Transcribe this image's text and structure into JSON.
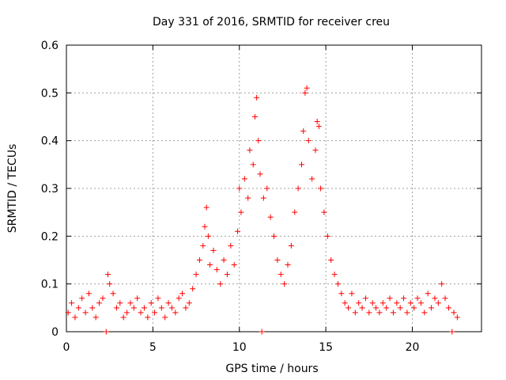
{
  "chart_data": {
    "type": "scatter",
    "title": "Day 331 of 2016, SRMTID for receiver creu",
    "xlabel": "GPS time / hours",
    "ylabel": "SRMTID / TECUs",
    "xlim": [
      0,
      24
    ],
    "ylim": [
      0,
      0.6
    ],
    "x_ticks": [
      0,
      5,
      10,
      15,
      20
    ],
    "x_tick_labels": [
      "0",
      "5",
      "10",
      "15",
      "20"
    ],
    "y_ticks": [
      0,
      0.1,
      0.2,
      0.3,
      0.4,
      0.5,
      0.6
    ],
    "y_tick_labels": [
      "0",
      "0.1",
      "0.2",
      "0.3",
      "0.4",
      "0.5",
      "0.6"
    ],
    "grid": true,
    "marker": "plus",
    "color": "#ff0000",
    "series": [
      {
        "name": "SRMTID",
        "points": [
          [
            0.1,
            0.04
          ],
          [
            0.3,
            0.06
          ],
          [
            0.5,
            0.03
          ],
          [
            0.7,
            0.05
          ],
          [
            0.9,
            0.07
          ],
          [
            1.1,
            0.04
          ],
          [
            1.3,
            0.08
          ],
          [
            1.5,
            0.05
          ],
          [
            1.7,
            0.03
          ],
          [
            1.9,
            0.06
          ],
          [
            2.1,
            0.07
          ],
          [
            2.3,
            0.0
          ],
          [
            2.4,
            0.12
          ],
          [
            2.5,
            0.1
          ],
          [
            2.7,
            0.08
          ],
          [
            2.9,
            0.05
          ],
          [
            3.1,
            0.06
          ],
          [
            3.3,
            0.03
          ],
          [
            3.5,
            0.04
          ],
          [
            3.7,
            0.06
          ],
          [
            3.9,
            0.05
          ],
          [
            4.1,
            0.07
          ],
          [
            4.3,
            0.04
          ],
          [
            4.5,
            0.05
          ],
          [
            4.7,
            0.03
          ],
          [
            4.9,
            0.06
          ],
          [
            5.1,
            0.04
          ],
          [
            5.3,
            0.07
          ],
          [
            5.5,
            0.05
          ],
          [
            5.7,
            0.03
          ],
          [
            5.9,
            0.06
          ],
          [
            6.1,
            0.05
          ],
          [
            6.3,
            0.04
          ],
          [
            6.5,
            0.07
          ],
          [
            6.7,
            0.08
          ],
          [
            6.9,
            0.05
          ],
          [
            7.1,
            0.06
          ],
          [
            7.3,
            0.09
          ],
          [
            7.5,
            0.12
          ],
          [
            7.7,
            0.15
          ],
          [
            7.9,
            0.18
          ],
          [
            8.0,
            0.22
          ],
          [
            8.1,
            0.26
          ],
          [
            8.2,
            0.2
          ],
          [
            8.3,
            0.14
          ],
          [
            8.5,
            0.17
          ],
          [
            8.7,
            0.13
          ],
          [
            8.9,
            0.1
          ],
          [
            9.1,
            0.15
          ],
          [
            9.3,
            0.12
          ],
          [
            9.5,
            0.18
          ],
          [
            9.7,
            0.14
          ],
          [
            9.9,
            0.21
          ],
          [
            10.0,
            0.3
          ],
          [
            10.1,
            0.25
          ],
          [
            10.3,
            0.32
          ],
          [
            10.5,
            0.28
          ],
          [
            10.6,
            0.38
          ],
          [
            10.8,
            0.35
          ],
          [
            10.9,
            0.45
          ],
          [
            11.0,
            0.49
          ],
          [
            11.1,
            0.4
          ],
          [
            11.2,
            0.33
          ],
          [
            11.3,
            0.0
          ],
          [
            11.4,
            0.28
          ],
          [
            11.6,
            0.3
          ],
          [
            11.8,
            0.24
          ],
          [
            12.0,
            0.2
          ],
          [
            12.2,
            0.15
          ],
          [
            12.4,
            0.12
          ],
          [
            12.6,
            0.1
          ],
          [
            12.8,
            0.14
          ],
          [
            13.0,
            0.18
          ],
          [
            13.2,
            0.25
          ],
          [
            13.4,
            0.3
          ],
          [
            13.6,
            0.35
          ],
          [
            13.7,
            0.42
          ],
          [
            13.8,
            0.5
          ],
          [
            13.9,
            0.51
          ],
          [
            14.0,
            0.4
          ],
          [
            14.2,
            0.32
          ],
          [
            14.4,
            0.38
          ],
          [
            14.5,
            0.44
          ],
          [
            14.6,
            0.43
          ],
          [
            14.7,
            0.3
          ],
          [
            14.9,
            0.25
          ],
          [
            15.1,
            0.2
          ],
          [
            15.3,
            0.15
          ],
          [
            15.5,
            0.12
          ],
          [
            15.7,
            0.1
          ],
          [
            15.9,
            0.08
          ],
          [
            16.1,
            0.06
          ],
          [
            16.3,
            0.05
          ],
          [
            16.5,
            0.08
          ],
          [
            16.7,
            0.04
          ],
          [
            16.9,
            0.06
          ],
          [
            17.1,
            0.05
          ],
          [
            17.3,
            0.07
          ],
          [
            17.5,
            0.04
          ],
          [
            17.7,
            0.06
          ],
          [
            17.9,
            0.05
          ],
          [
            18.1,
            0.04
          ],
          [
            18.3,
            0.06
          ],
          [
            18.5,
            0.05
          ],
          [
            18.7,
            0.07
          ],
          [
            18.9,
            0.04
          ],
          [
            19.1,
            0.06
          ],
          [
            19.3,
            0.05
          ],
          [
            19.5,
            0.07
          ],
          [
            19.7,
            0.04
          ],
          [
            19.9,
            0.06
          ],
          [
            20.1,
            0.05
          ],
          [
            20.3,
            0.07
          ],
          [
            20.5,
            0.06
          ],
          [
            20.7,
            0.04
          ],
          [
            20.9,
            0.08
          ],
          [
            21.1,
            0.05
          ],
          [
            21.3,
            0.07
          ],
          [
            21.5,
            0.06
          ],
          [
            21.7,
            0.1
          ],
          [
            21.9,
            0.07
          ],
          [
            22.1,
            0.05
          ],
          [
            22.3,
            0.0
          ],
          [
            22.4,
            0.04
          ],
          [
            22.6,
            0.03
          ]
        ]
      }
    ]
  }
}
